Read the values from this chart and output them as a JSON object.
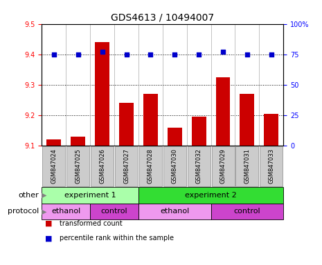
{
  "title": "GDS4613 / 10494007",
  "samples": [
    "GSM847024",
    "GSM847025",
    "GSM847026",
    "GSM847027",
    "GSM847028",
    "GSM847030",
    "GSM847032",
    "GSM847029",
    "GSM847031",
    "GSM847033"
  ],
  "transformed_count": [
    9.12,
    9.13,
    9.44,
    9.24,
    9.27,
    9.16,
    9.195,
    9.325,
    9.27,
    9.205
  ],
  "percentile_rank": [
    75,
    75,
    77,
    75,
    75,
    75,
    75,
    77,
    75,
    75
  ],
  "ylim_left": [
    9.1,
    9.5
  ],
  "ylim_right": [
    0,
    100
  ],
  "yticks_left": [
    9.1,
    9.2,
    9.3,
    9.4,
    9.5
  ],
  "yticks_right": [
    0,
    25,
    50,
    75,
    100
  ],
  "ytick_labels_right": [
    "0",
    "25",
    "50",
    "75",
    "100%"
  ],
  "bar_color": "#cc0000",
  "dot_color": "#0000cc",
  "bar_bottom": 9.1,
  "groups": [
    {
      "label": "experiment 1",
      "start": 0,
      "end": 4,
      "color": "#aaffaa"
    },
    {
      "label": "experiment 2",
      "start": 4,
      "end": 10,
      "color": "#33dd33"
    }
  ],
  "protocols": [
    {
      "label": "ethanol",
      "start": 0,
      "end": 2,
      "color": "#ee99ee"
    },
    {
      "label": "control",
      "start": 2,
      "end": 4,
      "color": "#cc44cc"
    },
    {
      "label": "ethanol",
      "start": 4,
      "end": 7,
      "color": "#ee99ee"
    },
    {
      "label": "control",
      "start": 7,
      "end": 10,
      "color": "#cc44cc"
    }
  ],
  "legend_items": [
    {
      "label": "transformed count",
      "color": "#cc0000"
    },
    {
      "label": "percentile rank within the sample",
      "color": "#0000cc"
    }
  ],
  "other_label": "other",
  "protocol_label": "protocol",
  "bg_color": "#ffffff",
  "tick_bg_color": "#cccccc",
  "grid_dotted_at": [
    9.2,
    9.3,
    9.4
  ],
  "title_fontsize": 10,
  "tick_fontsize": 7,
  "bar_fontsize": 6.5,
  "annot_fontsize": 8
}
